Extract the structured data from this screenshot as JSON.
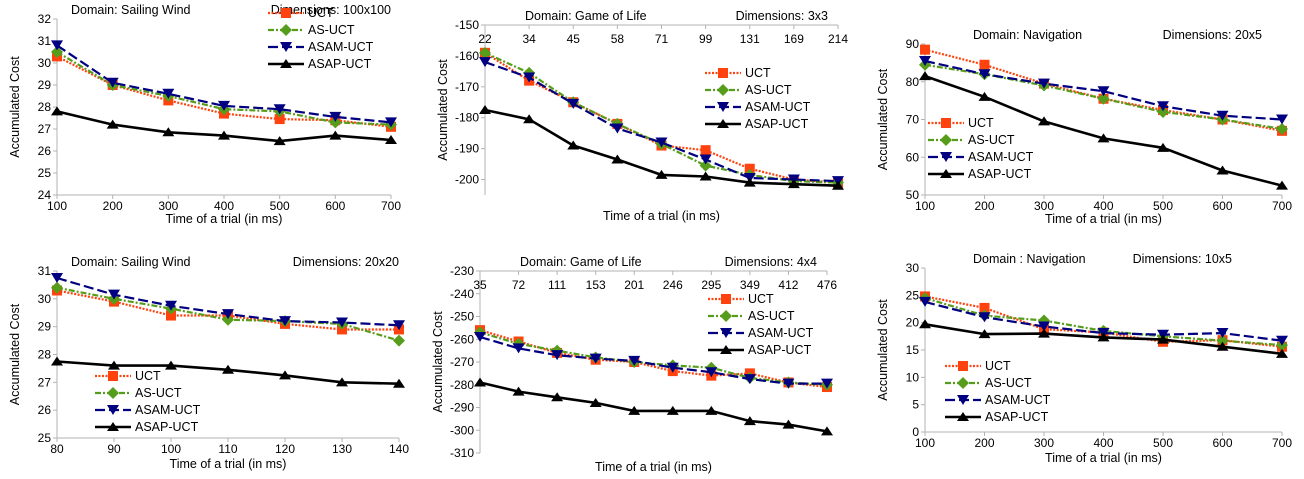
{
  "figure": {
    "chart_data": [
      {
        "type": "line",
        "domain_label": "Domain: Sailing Wind",
        "dims_label": "Dimensions: 100x100",
        "xlabel": "Time of a trial (in ms)",
        "ylabel": "Accumulated Cost",
        "x": [
          100,
          200,
          300,
          400,
          500,
          600,
          700
        ],
        "xlim": [
          100,
          700
        ],
        "ylim": [
          24,
          32
        ],
        "yticks": [
          24,
          25,
          26,
          27,
          28,
          29,
          30,
          31,
          32
        ],
        "legend_position": "top-right",
        "series": [
          {
            "name": "UCT",
            "values": [
              30.3,
              29.0,
              28.3,
              27.7,
              27.45,
              27.4,
              27.1
            ]
          },
          {
            "name": "AS-UCT",
            "values": [
              30.5,
              29.0,
              28.5,
              27.9,
              27.8,
              27.3,
              27.2
            ]
          },
          {
            "name": "ASAM-UCT",
            "values": [
              30.8,
              29.1,
              28.6,
              28.05,
              27.9,
              27.55,
              27.3
            ]
          },
          {
            "name": "ASAP-UCT",
            "values": [
              27.8,
              27.2,
              26.85,
              26.7,
              26.45,
              26.7,
              26.5
            ]
          }
        ]
      },
      {
        "type": "line",
        "domain_label": "Domain: Game of Life",
        "dims_label": "Dimensions: 3x3",
        "xlabel": "Time of a trial (in ms)",
        "ylabel": "Accumulated Cost",
        "x": [
          22,
          34,
          45,
          58,
          71,
          99,
          131,
          169,
          214
        ],
        "xaxis_top": true,
        "ylim": [
          -205,
          -150
        ],
        "yticks": [
          -150,
          -160,
          -170,
          -180,
          -190,
          -200
        ],
        "legend_position": "right",
        "series": [
          {
            "name": "UCT",
            "values": [
              -159,
              -168,
              -175,
              -182,
              -189,
              -190.5,
              -196.5,
              -200,
              -201
            ]
          },
          {
            "name": "AS-UCT",
            "values": [
              -159,
              -165.5,
              -175,
              -182,
              -188.5,
              -195.5,
              -198.5,
              -200.5,
              -201
            ]
          },
          {
            "name": "ASAM-UCT",
            "values": [
              -162,
              -167,
              -175.5,
              -183.5,
              -188,
              -193.5,
              -199.5,
              -200,
              -200.5
            ]
          },
          {
            "name": "ASAP-UCT",
            "values": [
              -177.5,
              -180.5,
              -189,
              -193.5,
              -198.5,
              -199,
              -201,
              -201.5,
              -202
            ]
          }
        ]
      },
      {
        "type": "line",
        "domain_label": "Domain: Navigation",
        "dims_label": "Dimensions: 20x5",
        "xlabel": "Time of a trial (in ms)",
        "ylabel": "Accumulated Cost",
        "x": [
          100,
          200,
          300,
          400,
          500,
          600,
          700
        ],
        "xlim": [
          100,
          700
        ],
        "ylim": [
          50,
          90
        ],
        "yticks": [
          50,
          60,
          70,
          80,
          90
        ],
        "legend_position": "left",
        "series": [
          {
            "name": "UCT",
            "values": [
              88.5,
              84.5,
              79.5,
              75.5,
              72.5,
              70,
              67
            ]
          },
          {
            "name": "AS-UCT",
            "values": [
              84.5,
              82,
              79,
              75.5,
              72,
              70,
              67.5
            ]
          },
          {
            "name": "ASAM-UCT",
            "values": [
              85.5,
              82,
              79.5,
              77.5,
              73.5,
              71,
              70
            ]
          },
          {
            "name": "ASAP-UCT",
            "values": [
              81.5,
              76,
              69.5,
              65,
              62.5,
              56.5,
              52.5
            ]
          }
        ]
      },
      {
        "type": "line",
        "domain_label": "Domain: Sailing Wind",
        "dims_label": "Dimensions: 20x20",
        "xlabel": "Time of a trial (in ms)",
        "ylabel": "Accumulated Cost",
        "x": [
          80,
          90,
          100,
          110,
          120,
          130,
          140
        ],
        "xlim": [
          80,
          140
        ],
        "ylim": [
          25,
          31
        ],
        "yticks": [
          25,
          26,
          27,
          28,
          29,
          30,
          31
        ],
        "legend_position": "bottom-left",
        "series": [
          {
            "name": "UCT",
            "values": [
              30.3,
              29.9,
              29.4,
              29.4,
              29.1,
              28.9,
              28.9
            ]
          },
          {
            "name": "AS-UCT",
            "values": [
              30.4,
              30.0,
              29.65,
              29.25,
              29.2,
              29.1,
              28.5
            ]
          },
          {
            "name": "ASAM-UCT",
            "values": [
              30.75,
              30.15,
              29.75,
              29.45,
              29.2,
              29.15,
              29.05
            ]
          },
          {
            "name": "ASAP-UCT",
            "values": [
              27.75,
              27.6,
              27.6,
              27.45,
              27.25,
              27.0,
              26.95
            ]
          }
        ]
      },
      {
        "type": "line",
        "domain_label": "Domain: Game of Life",
        "dims_label": "Dimensions: 4x4",
        "xlabel": "Time of a trial (in ms)",
        "ylabel": "Accumulated Cost",
        "x": [
          35,
          72,
          111,
          153,
          201,
          246,
          295,
          349,
          412,
          476
        ],
        "xaxis_top": true,
        "ylim": [
          -310,
          -230
        ],
        "yticks": [
          -230,
          -240,
          -250,
          -260,
          -270,
          -280,
          -290,
          -300,
          -310
        ],
        "legend_position": "top-right",
        "series": [
          {
            "name": "UCT",
            "values": [
              -256,
              -261,
              -266,
              -269,
              -270,
              -274,
              -276,
              -275,
              -279,
              -281
            ]
          },
          {
            "name": "AS-UCT",
            "values": [
              -257,
              -262,
              -265,
              -268,
              -270,
              -271.5,
              -272.5,
              -277,
              -279,
              -280
            ]
          },
          {
            "name": "ASAM-UCT",
            "values": [
              -259,
              -264,
              -267,
              -268.5,
              -269.5,
              -272.5,
              -274.5,
              -277.5,
              -279.5,
              -279.5
            ]
          },
          {
            "name": "ASAP-UCT",
            "values": [
              -279,
              -283,
              -285.5,
              -288,
              -291.5,
              -291.5,
              -291.5,
              -296,
              -297.5,
              -300.5
            ]
          }
        ]
      },
      {
        "type": "line",
        "domain_label": "Domain : Navigation",
        "dims_label": "Dimensions: 10x5",
        "xlabel": "Time of a trial (in ms)",
        "ylabel": "Accumulated Cost",
        "x": [
          100,
          200,
          300,
          400,
          500,
          600,
          700
        ],
        "xlim": [
          100,
          700
        ],
        "ylim": [
          0,
          30
        ],
        "yticks": [
          0,
          5,
          10,
          15,
          20,
          25,
          30
        ],
        "legend_position": "bottom-left",
        "series": [
          {
            "name": "UCT",
            "values": [
              24.8,
              22.7,
              18.8,
              18.2,
              16.5,
              16.8,
              15.6
            ]
          },
          {
            "name": "AS-UCT",
            "values": [
              24.5,
              21.3,
              20.4,
              18.5,
              17.5,
              16.7,
              15.9
            ]
          },
          {
            "name": "ASAM-UCT",
            "values": [
              23.8,
              21.0,
              19.3,
              18.1,
              17.8,
              18.1,
              16.7
            ]
          },
          {
            "name": "ASAP-UCT",
            "values": [
              19.7,
              17.9,
              18.0,
              17.3,
              16.9,
              15.6,
              14.3
            ]
          }
        ]
      }
    ]
  }
}
